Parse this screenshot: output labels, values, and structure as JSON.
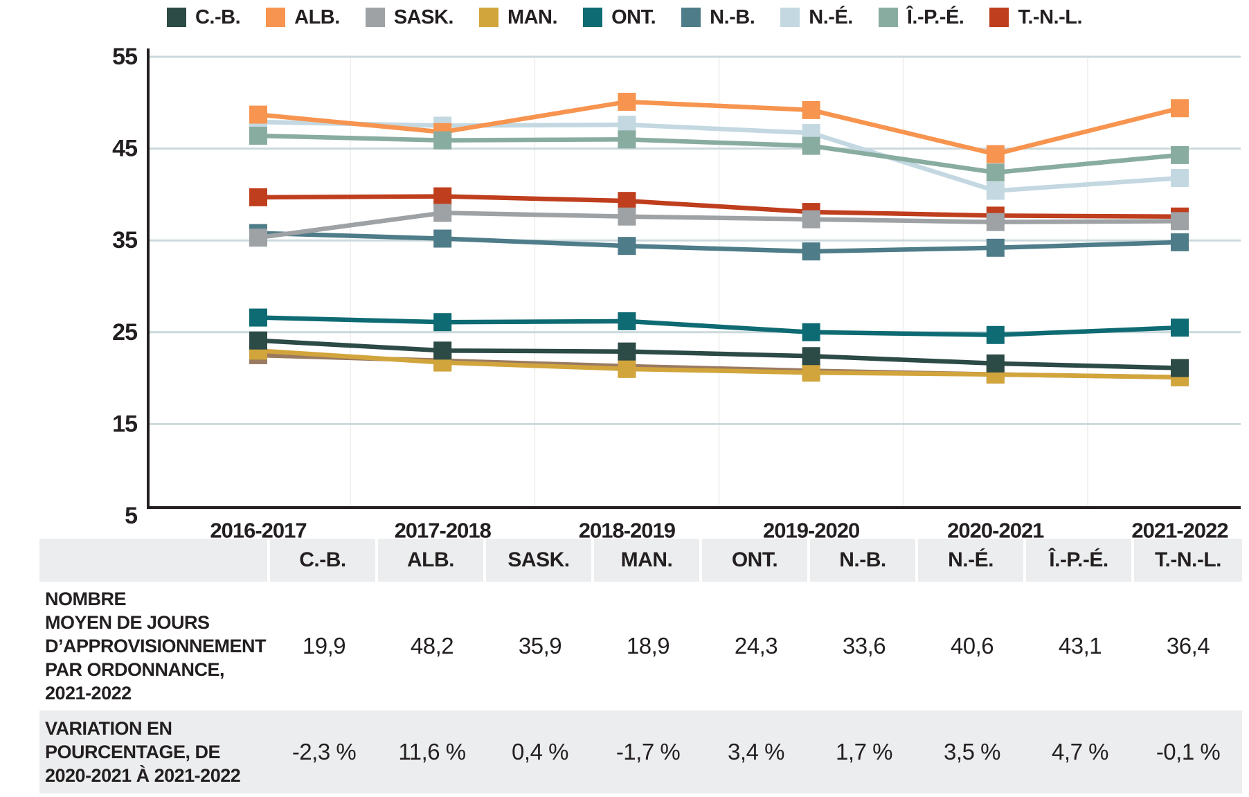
{
  "chart_data": {
    "type": "line",
    "title": "",
    "xlabel": "",
    "ylabel": "",
    "categories": [
      "2016-2017",
      "2017-2018",
      "2018-2019",
      "2019-2020",
      "2020-2021",
      "2021-2022"
    ],
    "series": [
      {
        "name": "C.-B.",
        "color": "#2C4A46",
        "values": [
          22.9,
          21.8,
          21.7,
          21.2,
          20.4,
          19.9
        ]
      },
      {
        "name": "ALB.",
        "color": "#F7944F",
        "values": [
          47.5,
          45.6,
          48.9,
          48.0,
          43.2,
          48.2
        ]
      },
      {
        "name": "SASK.",
        "color": "#9EA2A5",
        "values": [
          34.1,
          36.8,
          36.4,
          36.1,
          35.8,
          35.9
        ]
      },
      {
        "name": "MAN.",
        "color": "#D2A53C",
        "values": [
          21.8,
          20.5,
          19.8,
          19.4,
          19.2,
          18.9
        ]
      },
      {
        "name": "ONT.",
        "color": "#0E6B73",
        "values": [
          25.4,
          24.9,
          25.0,
          23.8,
          23.5,
          24.3
        ]
      },
      {
        "name": "N.-B.",
        "color": "#4E7C89",
        "values": [
          34.6,
          34.0,
          33.2,
          32.6,
          33.0,
          33.6
        ]
      },
      {
        "name": "N.-É.",
        "color": "#C3D8E1",
        "values": [
          46.7,
          46.3,
          46.4,
          45.5,
          39.2,
          40.6
        ]
      },
      {
        "name": "Î.-P.-É.",
        "color": "#89ACA1",
        "values": [
          45.2,
          44.7,
          44.8,
          44.1,
          41.2,
          43.1
        ]
      },
      {
        "name": "T.-N.-L.",
        "color": "#BF3E1D",
        "values": [
          38.5,
          38.6,
          38.1,
          36.9,
          36.5,
          36.4
        ]
      },
      {
        "name": "",
        "color": "#9A7A61",
        "values": [
          21.3,
          20.7,
          20.1,
          19.6,
          19.2,
          18.9
        ],
        "in_legend": false
      }
    ],
    "ylim": [
      5,
      55
    ],
    "yticks": [
      "5",
      "15",
      "25",
      "35",
      "45",
      "55"
    ],
    "grid": "horizontal",
    "legend_position": "top",
    "marker": "square",
    "colors": {
      "gridline": "#CBD9DC",
      "axis": "#231F20",
      "text": "#231F20"
    }
  },
  "table": {
    "header_bg": "#ECEDEE",
    "headers": [
      "",
      "C.-B.",
      "ALB.",
      "SASK.",
      "MAN.",
      "ONT.",
      "N.-B.",
      "N.-É.",
      "Î.-P.-É.",
      "T.-N.-L."
    ],
    "rows": [
      {
        "label": "NOMBRE MOYEN DE JOURS D’APPROVISIONNEMENT PAR ORDONNANCE, 2021-2022",
        "label_lines": [
          "NOMBRE",
          "MOYEN DE JOURS",
          "D’APPROVISIONNEMENT",
          "PAR ORDONNANCE,",
          "2021-2022"
        ],
        "values": [
          "19,9",
          "48,2",
          "35,9",
          "18,9",
          "24,3",
          "33,6",
          "40,6",
          "43,1",
          "36,4"
        ]
      },
      {
        "label": "VARIATION EN POURCENTAGE, DE 2020-2021 À 2021-2022",
        "label_lines": [
          "VARIATION EN",
          "POURCENTAGE, DE",
          "2020-2021 À 2021-2022"
        ],
        "values": [
          "-2,3 %",
          "11,6 %",
          "0,4 %",
          "-1,7 %",
          "3,4 %",
          "1,7 %",
          "3,5 %",
          "4,7 %",
          "-0,1 %"
        ]
      }
    ]
  }
}
